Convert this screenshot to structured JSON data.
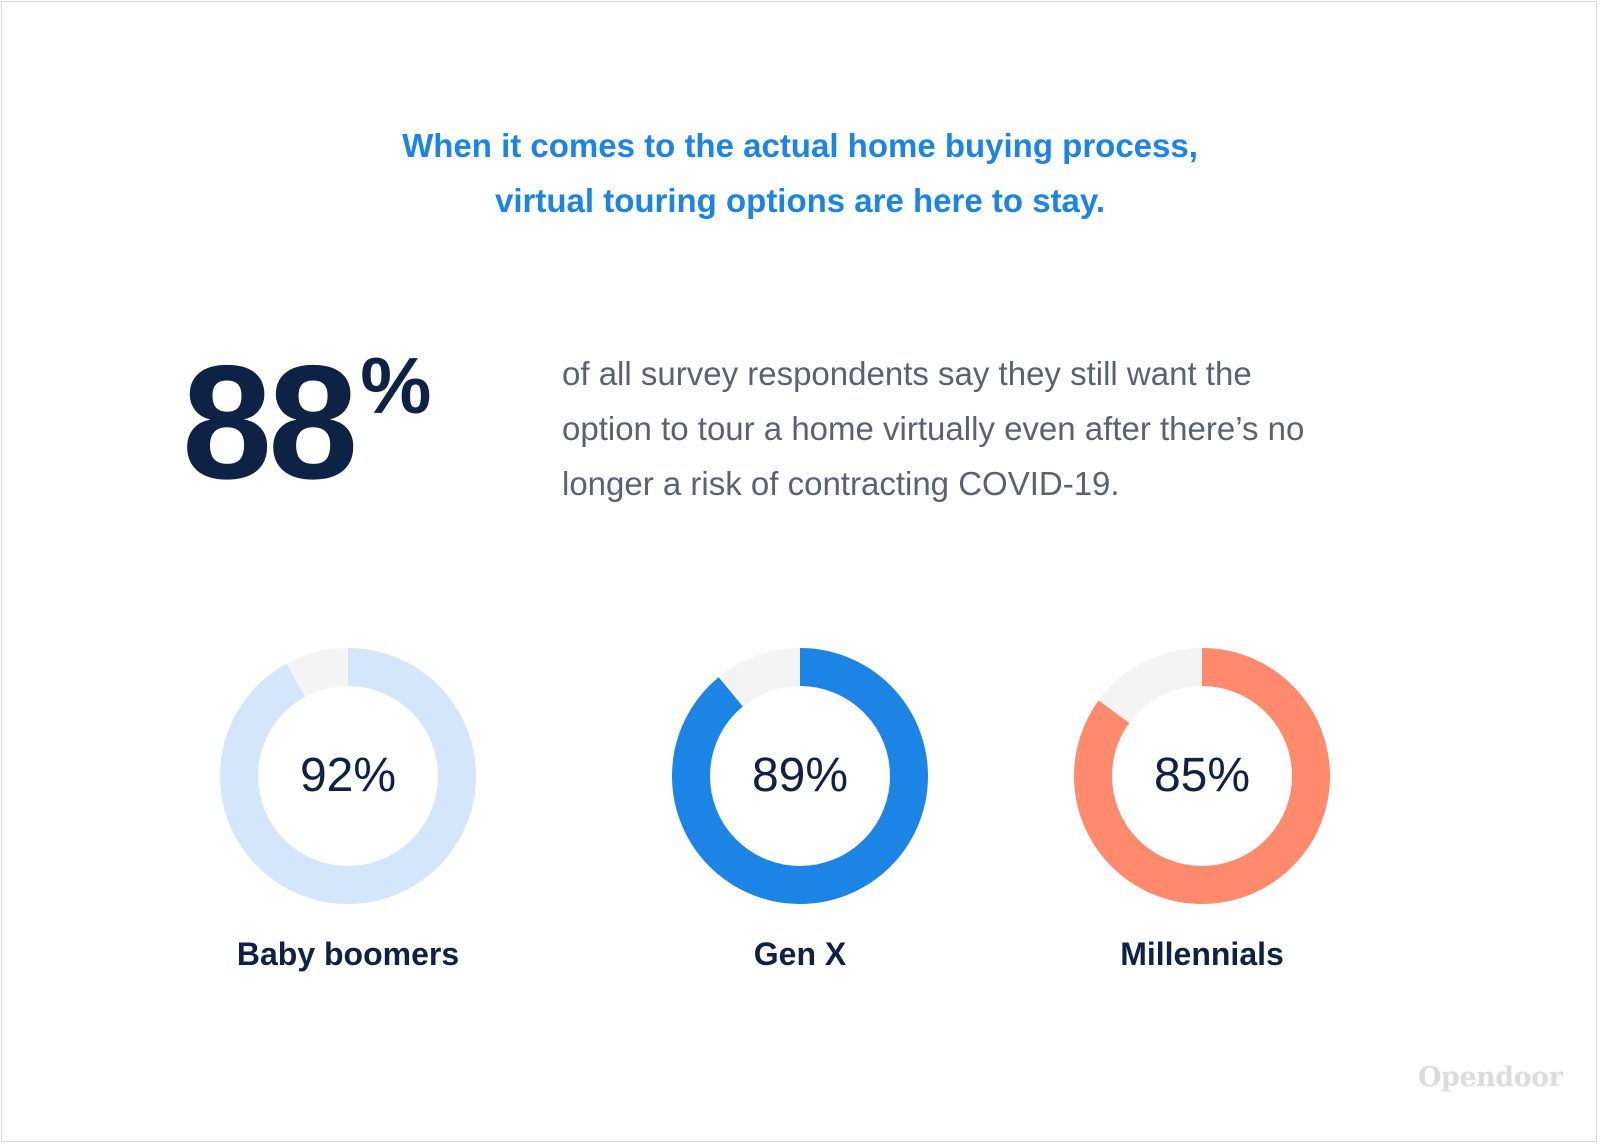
{
  "headline": {
    "line1": "When it comes to the actual home buying process,",
    "line2": "virtual touring options are here to stay."
  },
  "big_stat": {
    "number": "88",
    "percent_sign": "%",
    "description_lines": [
      "of all survey respondents say they still want the",
      "option to tour a home virtually even after there’s no",
      "longer a risk of contracting COVID-19."
    ]
  },
  "brand": "Opendoor",
  "colors": {
    "headline": "#1b84e4",
    "dark_text": "#0d2244",
    "body_text": "#5a6272",
    "donut_remainder": "#f4f4f4"
  },
  "chart_data": {
    "type": "pie",
    "variant": "donut",
    "unit": "%",
    "max": 100,
    "items": [
      {
        "label": "Baby boomers",
        "value": 92,
        "display": "92%",
        "color": "#d4e6f9"
      },
      {
        "label": "Gen X",
        "value": 89,
        "display": "89%",
        "color": "#1b84e4"
      },
      {
        "label": "Millennials",
        "value": 85,
        "display": "85%",
        "color": "#ff8a6e"
      }
    ]
  }
}
